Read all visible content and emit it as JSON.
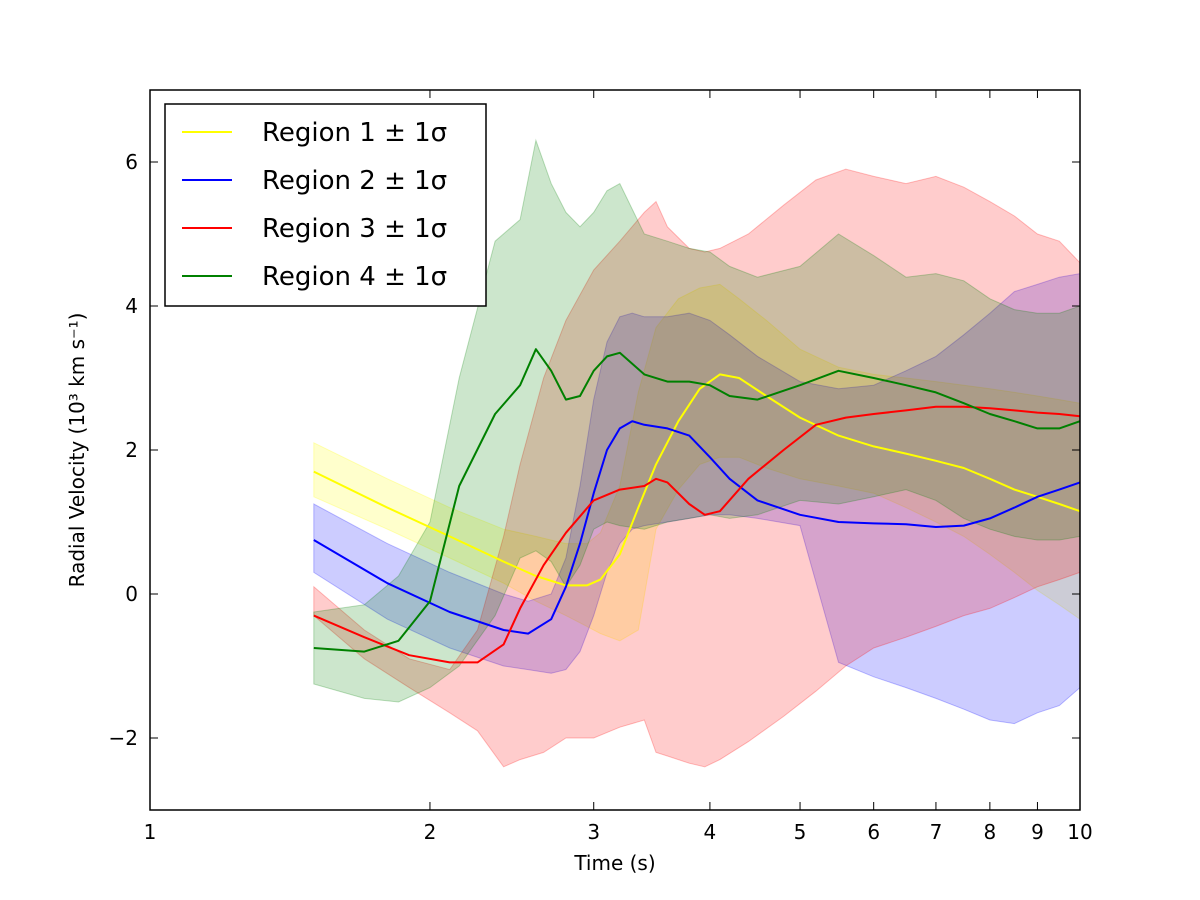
{
  "chart_data": {
    "type": "line",
    "xscale": "log",
    "xlabel": "Time (s)",
    "ylabel": "Radial Velocity (10³ km s⁻¹)",
    "xlim": [
      1,
      10
    ],
    "ylim": [
      -3,
      7
    ],
    "x_ticks": [
      1,
      2,
      3,
      4,
      5,
      6,
      7,
      8,
      9,
      10
    ],
    "x_tick_labels": [
      "1",
      "2",
      "3",
      "4",
      "5",
      "6",
      "7",
      "8",
      "9",
      "10"
    ],
    "y_ticks": [
      -2,
      0,
      2,
      4,
      6
    ],
    "y_tick_labels": [
      "−2",
      "0",
      "2",
      "4",
      "6"
    ],
    "legend": {
      "position": "top-left"
    },
    "series": [
      {
        "name": "Region 1",
        "legend_label": "Region 1 ± 1σ",
        "color": "#ffff00",
        "x": [
          1.5,
          1.8,
          2.1,
          2.4,
          2.6,
          2.8,
          2.95,
          3.05,
          3.2,
          3.35,
          3.5,
          3.7,
          3.9,
          4.1,
          4.3,
          4.6,
          5.0,
          5.5,
          6.0,
          6.5,
          7.0,
          7.5,
          8.0,
          8.5,
          9.0,
          9.5,
          10.0
        ],
        "y": [
          1.7,
          1.2,
          0.8,
          0.45,
          0.25,
          0.12,
          0.12,
          0.2,
          0.55,
          1.2,
          1.8,
          2.4,
          2.85,
          3.05,
          3.0,
          2.75,
          2.45,
          2.2,
          2.05,
          1.95,
          1.85,
          1.75,
          1.6,
          1.45,
          1.35,
          1.25,
          1.15
        ],
        "upper": [
          2.1,
          1.6,
          1.2,
          0.9,
          0.8,
          0.7,
          0.7,
          0.85,
          1.5,
          2.8,
          3.7,
          4.1,
          4.25,
          4.3,
          4.1,
          3.8,
          3.4,
          3.15,
          3.05,
          3.0,
          2.95,
          2.9,
          2.85,
          2.8,
          2.75,
          2.7,
          2.65
        ],
        "lower": [
          1.35,
          0.9,
          0.5,
          0.15,
          -0.1,
          -0.3,
          -0.45,
          -0.55,
          -0.65,
          -0.5,
          0.9,
          1.45,
          1.8,
          1.9,
          1.9,
          1.75,
          1.6,
          1.5,
          1.4,
          1.2,
          1.0,
          0.8,
          0.55,
          0.3,
          0.05,
          -0.15,
          -0.35
        ]
      },
      {
        "name": "Region 2",
        "legend_label": "Region 2 ± 1σ",
        "color": "#0000ff",
        "x": [
          1.5,
          1.8,
          2.1,
          2.4,
          2.55,
          2.7,
          2.8,
          2.9,
          3.0,
          3.1,
          3.2,
          3.3,
          3.4,
          3.6,
          3.8,
          4.0,
          4.2,
          4.5,
          5.0,
          5.5,
          6.0,
          6.5,
          7.0,
          7.5,
          8.0,
          8.5,
          9.0,
          9.5,
          10.0
        ],
        "y": [
          0.75,
          0.15,
          -0.25,
          -0.5,
          -0.55,
          -0.35,
          0.1,
          0.7,
          1.4,
          2.0,
          2.3,
          2.4,
          2.35,
          2.3,
          2.2,
          1.9,
          1.6,
          1.3,
          1.1,
          1.0,
          0.98,
          0.97,
          0.93,
          0.95,
          1.05,
          1.2,
          1.35,
          1.45,
          1.55
        ],
        "upper": [
          1.25,
          0.7,
          0.3,
          0.0,
          -0.1,
          0.0,
          0.5,
          1.5,
          2.7,
          3.5,
          3.85,
          3.9,
          3.85,
          3.85,
          3.9,
          3.8,
          3.6,
          3.3,
          2.95,
          2.85,
          2.9,
          3.1,
          3.3,
          3.6,
          3.9,
          4.2,
          4.3,
          4.4,
          4.45
        ],
        "lower": [
          0.3,
          -0.35,
          -0.75,
          -1.0,
          -1.05,
          -1.1,
          -1.05,
          -0.8,
          -0.3,
          0.3,
          0.7,
          0.9,
          0.95,
          1.0,
          1.05,
          1.1,
          1.1,
          1.05,
          0.95,
          -0.95,
          -1.15,
          -1.3,
          -1.45,
          -1.6,
          -1.75,
          -1.8,
          -1.65,
          -1.55,
          -1.3
        ]
      },
      {
        "name": "Region 3",
        "legend_label": "Region 3 ± 1σ",
        "color": "#ff0000",
        "x": [
          1.5,
          1.7,
          1.9,
          2.1,
          2.25,
          2.4,
          2.5,
          2.65,
          2.8,
          3.0,
          3.2,
          3.4,
          3.5,
          3.6,
          3.8,
          3.95,
          4.1,
          4.4,
          4.8,
          5.2,
          5.6,
          6.0,
          6.5,
          7.0,
          7.5,
          8.0,
          8.5,
          9.0,
          9.5,
          10.0
        ],
        "y": [
          -0.3,
          -0.6,
          -0.85,
          -0.95,
          -0.95,
          -0.7,
          -0.2,
          0.4,
          0.85,
          1.3,
          1.45,
          1.5,
          1.6,
          1.55,
          1.25,
          1.1,
          1.15,
          1.6,
          2.0,
          2.35,
          2.45,
          2.5,
          2.55,
          2.6,
          2.6,
          2.58,
          2.55,
          2.52,
          2.5,
          2.47
        ],
        "upper": [
          0.1,
          -0.5,
          -0.9,
          -1.05,
          -0.5,
          0.8,
          1.8,
          3.0,
          3.8,
          4.5,
          4.9,
          5.3,
          5.45,
          5.1,
          4.8,
          4.75,
          4.8,
          5.0,
          5.4,
          5.75,
          5.9,
          5.8,
          5.7,
          5.8,
          5.65,
          5.45,
          5.25,
          5.0,
          4.9,
          4.6
        ],
        "lower": [
          -0.3,
          -0.9,
          -1.3,
          -1.65,
          -1.9,
          -2.4,
          -2.3,
          -2.2,
          -2.0,
          -2.0,
          -1.85,
          -1.75,
          -2.2,
          -2.25,
          -2.35,
          -2.4,
          -2.3,
          -2.05,
          -1.7,
          -1.35,
          -1.0,
          -0.75,
          -0.6,
          -0.45,
          -0.3,
          -0.2,
          -0.05,
          0.1,
          0.2,
          0.3
        ]
      },
      {
        "name": "Region 4",
        "legend_label": "Region 4 ± 1σ",
        "color": "#008000",
        "x": [
          1.5,
          1.7,
          1.85,
          2.0,
          2.15,
          2.35,
          2.5,
          2.6,
          2.7,
          2.8,
          2.9,
          3.0,
          3.1,
          3.2,
          3.4,
          3.6,
          3.8,
          4.0,
          4.2,
          4.5,
          5.0,
          5.5,
          6.0,
          6.5,
          7.0,
          7.5,
          8.0,
          8.5,
          9.0,
          9.5,
          10.0
        ],
        "y": [
          -0.75,
          -0.8,
          -0.65,
          -0.1,
          1.5,
          2.5,
          2.9,
          3.4,
          3.1,
          2.7,
          2.75,
          3.1,
          3.3,
          3.35,
          3.05,
          2.95,
          2.95,
          2.9,
          2.75,
          2.7,
          2.9,
          3.1,
          3.0,
          2.9,
          2.8,
          2.65,
          2.5,
          2.4,
          2.3,
          2.3,
          2.4
        ],
        "upper": [
          -0.25,
          -0.15,
          0.25,
          1.0,
          3.0,
          4.9,
          5.2,
          6.3,
          5.7,
          5.3,
          5.1,
          5.3,
          5.6,
          5.7,
          5.0,
          4.9,
          4.8,
          4.75,
          4.55,
          4.4,
          4.55,
          5.0,
          4.7,
          4.4,
          4.45,
          4.35,
          4.1,
          3.95,
          3.9,
          3.9,
          4.0
        ],
        "lower": [
          -1.25,
          -1.45,
          -1.5,
          -1.3,
          -1.0,
          -0.3,
          0.5,
          0.6,
          0.45,
          0.1,
          0.4,
          0.9,
          1.0,
          0.95,
          0.9,
          1.0,
          1.05,
          1.1,
          1.05,
          1.1,
          1.3,
          1.25,
          1.35,
          1.45,
          1.3,
          1.05,
          0.9,
          0.8,
          0.75,
          0.75,
          0.8
        ]
      }
    ]
  }
}
